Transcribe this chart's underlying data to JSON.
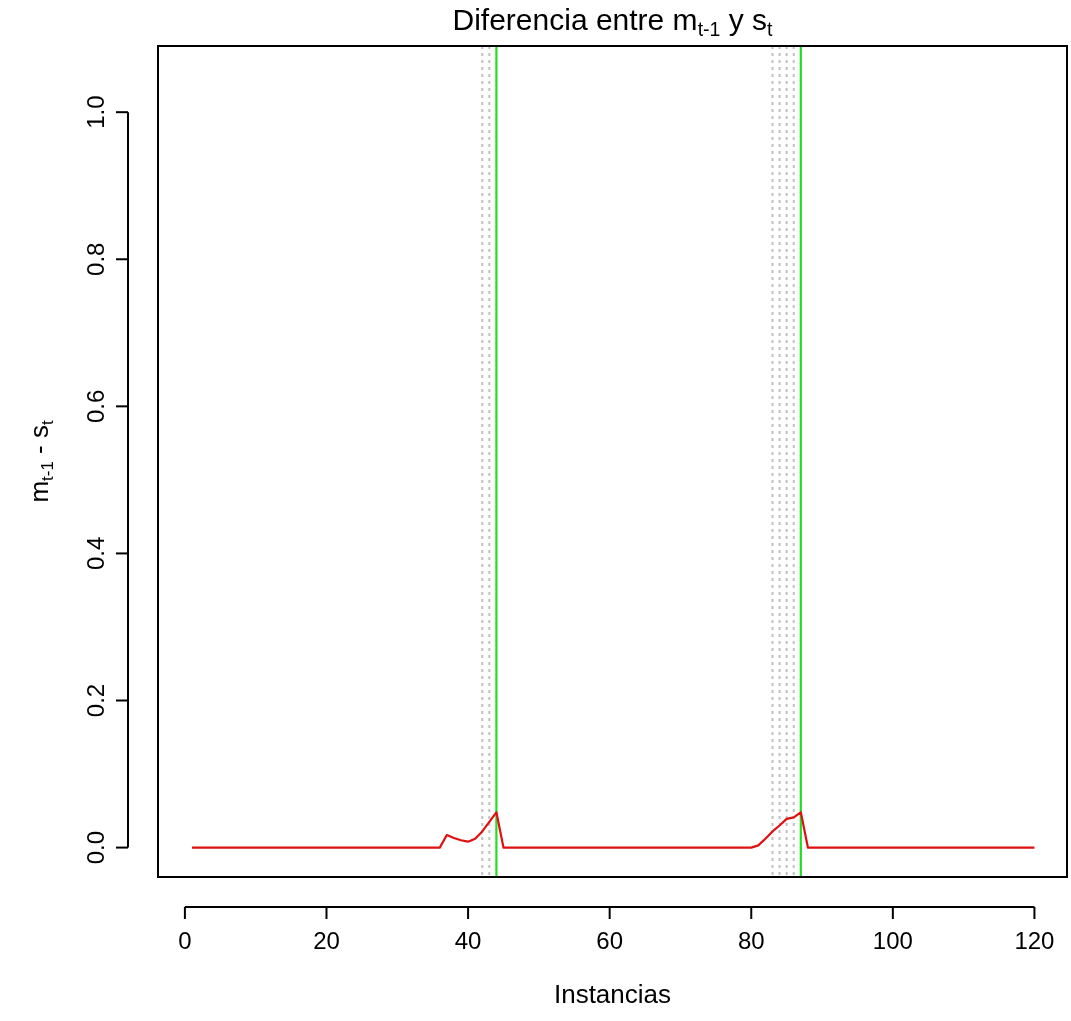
{
  "chart_data": {
    "type": "line",
    "title": "Diferencia entre m$_{t-1}$ y s$_{t}$",
    "xlabel": "Instancias",
    "ylabel": "m$_{t-1}$ - s$_{t}$",
    "series": [
      {
        "color": "#e01010",
        "x": [
          1,
          36,
          37,
          38,
          39,
          40,
          41,
          42,
          43,
          44,
          45,
          80,
          81,
          82,
          83,
          84,
          85,
          86,
          87,
          88,
          120
        ],
        "values": [
          0,
          0,
          0.017,
          0.013,
          0.01,
          0.008,
          0.012,
          0.022,
          0.035,
          0.048,
          0,
          0,
          0.003,
          0.012,
          0.022,
          0.03,
          0.039,
          0.041,
          0.048,
          0,
          0
        ]
      }
    ],
    "xlim": [
      -3.8,
      124.6
    ],
    "ylim": [
      -0.04,
      1.09
    ],
    "xticks": [
      0,
      20,
      40,
      60,
      80,
      100,
      120
    ],
    "yticks": [
      {
        "value": 0,
        "label": "0.0"
      },
      0.2,
      0.4,
      0.6,
      0.8,
      {
        "value": 1,
        "label": "1.0"
      }
    ],
    "ref_lines": [
      {
        "axis": "x",
        "value": 42,
        "color": "#c0c0c0",
        "line_style": "dotted"
      },
      {
        "axis": "x",
        "value": 43,
        "color": "#c0c0c0",
        "line_style": "dotted"
      },
      {
        "axis": "x",
        "value": 83,
        "color": "#c0c0c0",
        "line_style": "dotted"
      },
      {
        "axis": "x",
        "value": 84,
        "color": "#c0c0c0",
        "line_style": "dotted"
      },
      {
        "axis": "x",
        "value": 85,
        "color": "#c0c0c0",
        "line_style": "dotted"
      },
      {
        "axis": "x",
        "value": 86,
        "color": "#c0c0c0",
        "line_style": "dotted"
      },
      {
        "axis": "x",
        "value": 44,
        "color": "#22dd22",
        "line_style": "solid"
      },
      {
        "axis": "x",
        "value": 87,
        "color": "#22dd22",
        "line_style": "solid"
      }
    ],
    "grid": false,
    "line_style": "solid"
  }
}
